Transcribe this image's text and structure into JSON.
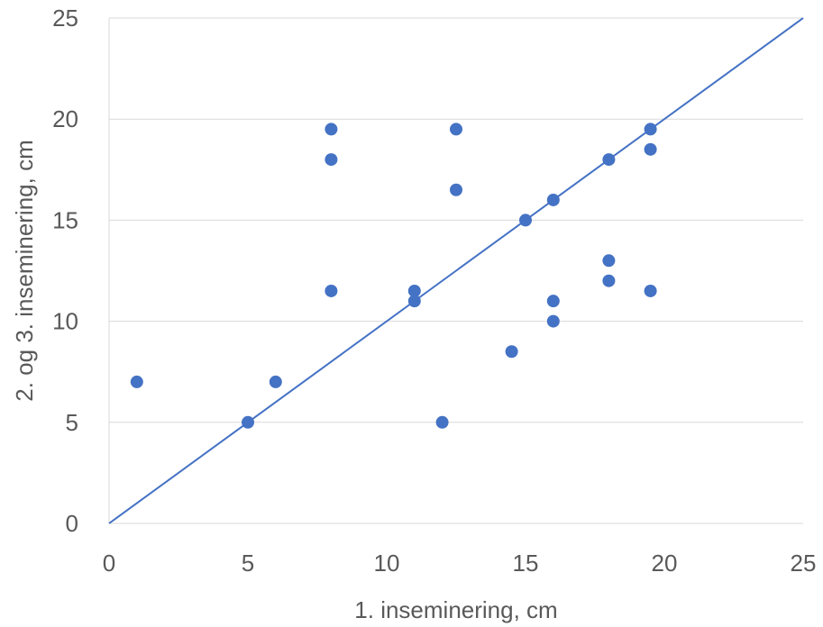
{
  "chart_data": {
    "type": "scatter",
    "xlabel": "1. inseminering, cm",
    "ylabel": "2. og 3. inseminering, cm",
    "xlim": [
      0,
      25
    ],
    "ylim": [
      0,
      25
    ],
    "xticks": [
      "0",
      "5",
      "10",
      "15",
      "20",
      "25"
    ],
    "yticks": [
      "0",
      "5",
      "10",
      "15",
      "20",
      "25"
    ],
    "grid": "horizontal",
    "colors": {
      "points": "#4472C4",
      "line": "#4472C4",
      "grid": "#D9D9D9",
      "text": "#595959"
    },
    "reference_line": {
      "x": [
        0,
        25
      ],
      "y": [
        0,
        25
      ]
    },
    "points": [
      {
        "x": 1,
        "y": 7
      },
      {
        "x": 5,
        "y": 5
      },
      {
        "x": 6,
        "y": 7
      },
      {
        "x": 8,
        "y": 19.5
      },
      {
        "x": 8,
        "y": 18
      },
      {
        "x": 8,
        "y": 11.5
      },
      {
        "x": 11,
        "y": 11.5
      },
      {
        "x": 11,
        "y": 11
      },
      {
        "x": 12,
        "y": 5
      },
      {
        "x": 12.5,
        "y": 19.5
      },
      {
        "x": 12.5,
        "y": 16.5
      },
      {
        "x": 14.5,
        "y": 8.5
      },
      {
        "x": 15,
        "y": 15
      },
      {
        "x": 16,
        "y": 16
      },
      {
        "x": 16,
        "y": 11
      },
      {
        "x": 16,
        "y": 10
      },
      {
        "x": 18,
        "y": 18
      },
      {
        "x": 18,
        "y": 13
      },
      {
        "x": 18,
        "y": 12
      },
      {
        "x": 19.5,
        "y": 19.5
      },
      {
        "x": 19.5,
        "y": 18.5
      },
      {
        "x": 19.5,
        "y": 11.5
      }
    ]
  }
}
